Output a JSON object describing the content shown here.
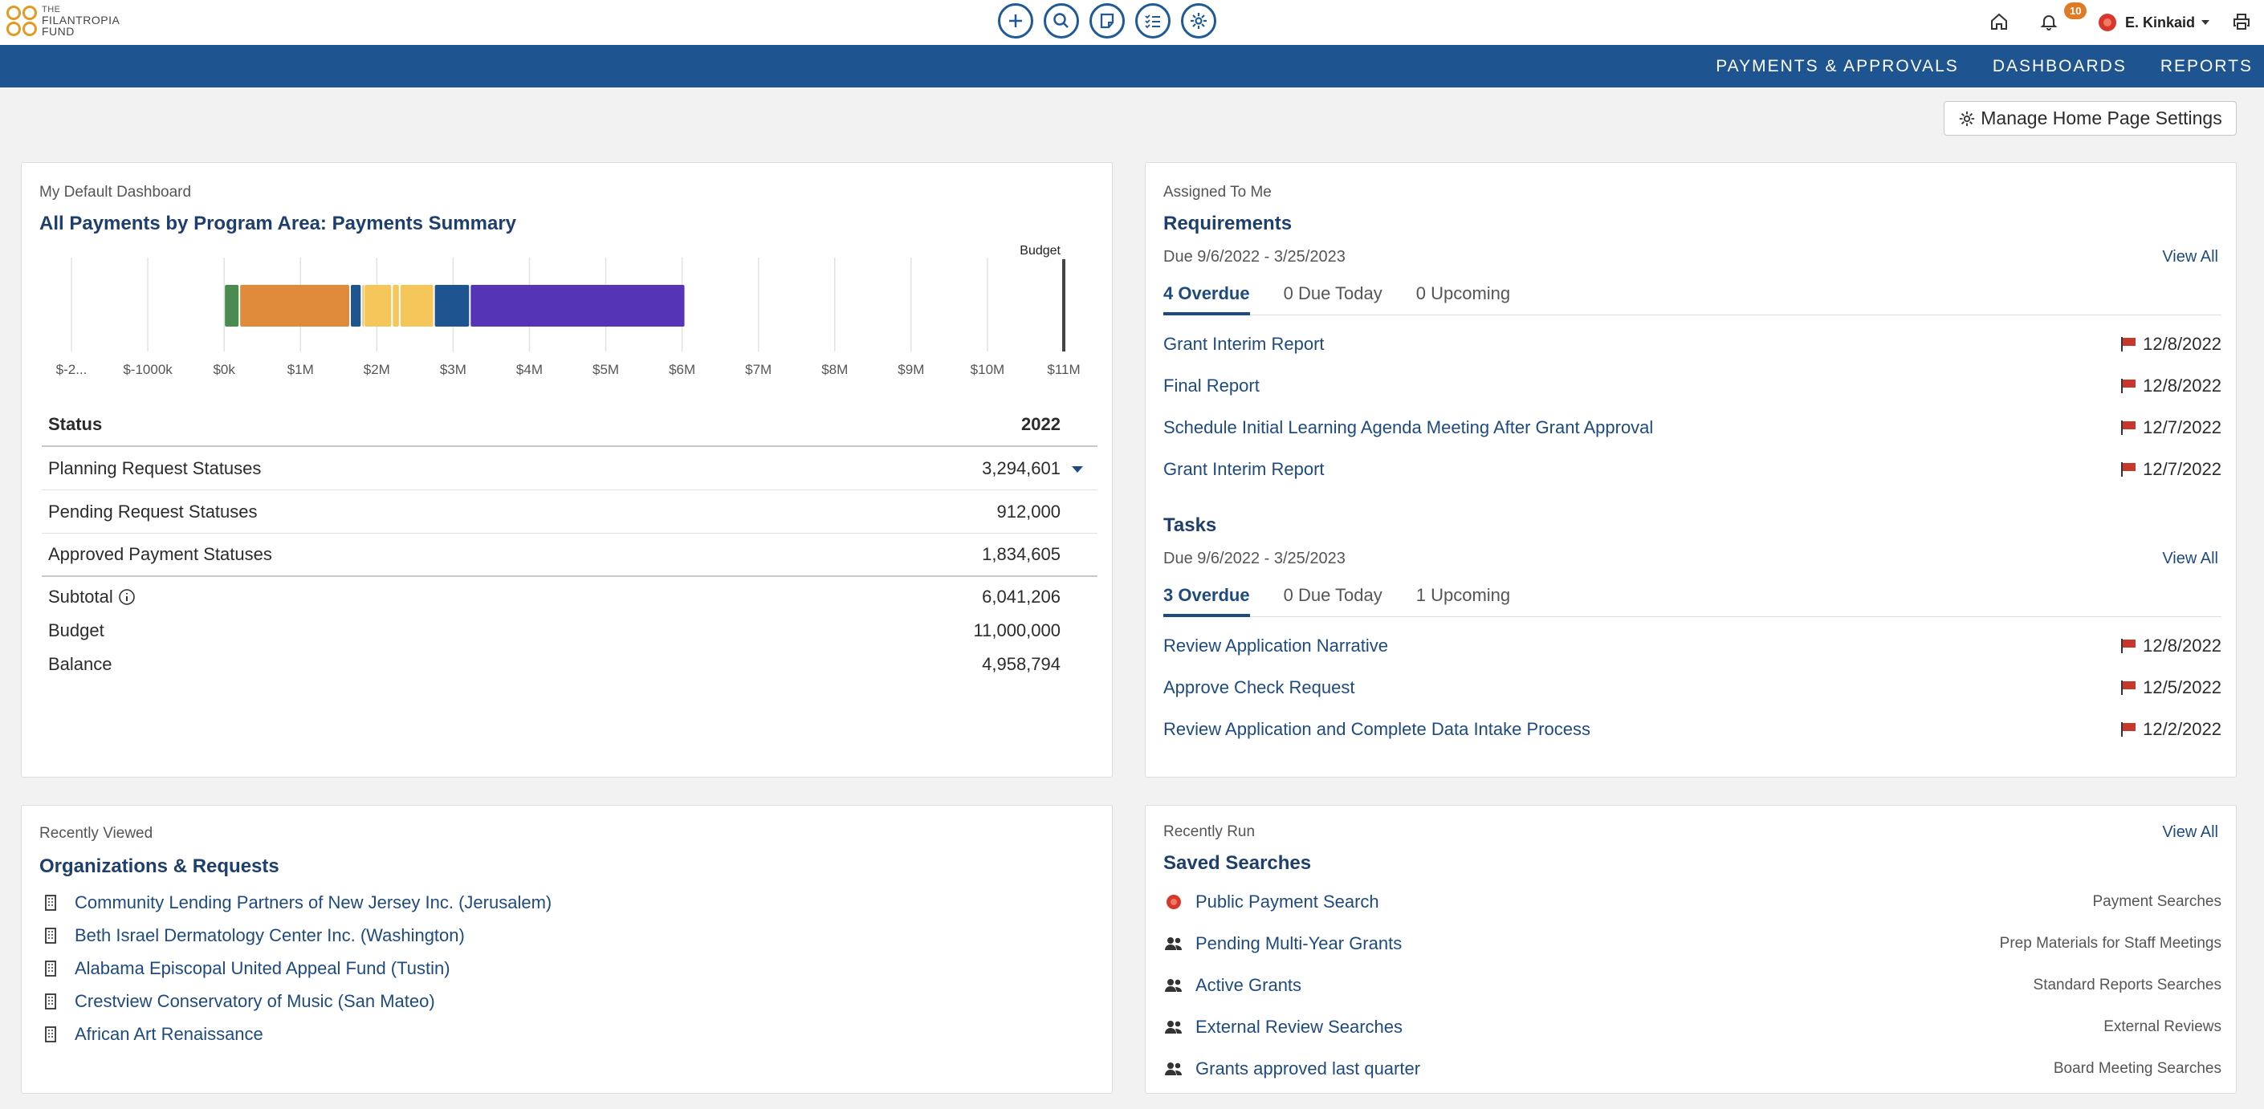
{
  "brand": {
    "line1": "THE",
    "line2": "FILANTROPIA",
    "line3": "FUND"
  },
  "toolbar": {
    "icons": [
      "plus-icon",
      "search-icon",
      "note-icon",
      "checklist-icon",
      "gear-icon"
    ]
  },
  "user": {
    "name": "E. Kinkaid",
    "notifications": "10"
  },
  "nav": {
    "items": [
      "PAYMENTS & APPROVALS",
      "DASHBOARDS",
      "REPORTS"
    ]
  },
  "manage_settings": "Manage Home Page Settings",
  "dashboard": {
    "eyebrow": "My Default Dashboard",
    "title": "All Payments by Program Area: Payments Summary",
    "status_header": "Status",
    "year_header": "2022",
    "rows": [
      {
        "label": "Planning Request Statuses",
        "value": "3,294,601"
      },
      {
        "label": "Pending Request Statuses",
        "value": "912,000"
      },
      {
        "label": "Approved Payment Statuses",
        "value": "1,834,605"
      }
    ],
    "totals": [
      {
        "label": "Subtotal",
        "value": "6,041,206"
      },
      {
        "label": "Budget",
        "value": "11,000,000"
      },
      {
        "label": "Balance",
        "value": "4,958,794"
      }
    ]
  },
  "chart_data": {
    "type": "bar",
    "orientation": "horizontal-stacked",
    "x_ticks": [
      "$-2...",
      "$-1000k",
      "$0k",
      "$1M",
      "$2M",
      "$3M",
      "$4M",
      "$5M",
      "$6M",
      "$7M",
      "$8M",
      "$9M",
      "$10M",
      "$11M"
    ],
    "xlim": [
      -2000000,
      11000000
    ],
    "budget_label": "Budget",
    "budget_value": 11000000,
    "segments": [
      {
        "start": 0,
        "end": 200000,
        "color": "#4a8c50"
      },
      {
        "start": 200000,
        "end": 1650000,
        "color": "#e08a3c"
      },
      {
        "start": 1650000,
        "end": 1800000,
        "color": "#1e5490"
      },
      {
        "start": 1800000,
        "end": 1830000,
        "color": "#f5c65a"
      },
      {
        "start": 1830000,
        "end": 2200000,
        "color": "#f5c65a"
      },
      {
        "start": 2200000,
        "end": 2300000,
        "color": "#f5c65a"
      },
      {
        "start": 2300000,
        "end": 2750000,
        "color": "#f5c65a"
      },
      {
        "start": 2750000,
        "end": 3220000,
        "color": "#1e5490"
      },
      {
        "start": 3220000,
        "end": 6041206,
        "color": "#5535b5"
      }
    ],
    "grid": true
  },
  "requirements": {
    "eyebrow": "Assigned To Me",
    "title": "Requirements",
    "date_range": "Due 9/6/2022 - 3/25/2023",
    "view_all": "View All",
    "tabs": [
      "4 Overdue",
      "0 Due Today",
      "0 Upcoming"
    ],
    "items": [
      {
        "label": "Grant Interim Report",
        "date": "12/8/2022"
      },
      {
        "label": "Final Report",
        "date": "12/8/2022"
      },
      {
        "label": "Schedule Initial Learning Agenda Meeting After Grant Approval",
        "date": "12/7/2022"
      },
      {
        "label": "Grant Interim Report",
        "date": "12/7/2022"
      }
    ]
  },
  "tasks": {
    "title": "Tasks",
    "date_range": "Due 9/6/2022 - 3/25/2023",
    "view_all": "View All",
    "tabs": [
      "3 Overdue",
      "0 Due Today",
      "1 Upcoming"
    ],
    "items": [
      {
        "label": "Review Application Narrative",
        "date": "12/8/2022"
      },
      {
        "label": "Approve Check Request",
        "date": "12/5/2022"
      },
      {
        "label": "Review Application and Complete Data Intake Process",
        "date": "12/2/2022"
      }
    ]
  },
  "recent": {
    "eyebrow": "Recently Viewed",
    "title": "Organizations & Requests",
    "items": [
      "Community Lending Partners of New Jersey Inc. (Jerusalem)",
      "Beth Israel Dermatology Center Inc. (Washington)",
      "Alabama Episcopal United Appeal Fund (Tustin)",
      "Crestview Conservatory of Music (San Mateo)",
      "African Art Renaissance"
    ]
  },
  "saved": {
    "eyebrow": "Recently Run",
    "title": "Saved Searches",
    "view_all": "View All",
    "items": [
      {
        "label": "Public Payment Search",
        "category": "Payment Searches",
        "icon": "red-badge-icon"
      },
      {
        "label": "Pending Multi-Year Grants",
        "category": "Prep Materials for Staff Meetings",
        "icon": "users-icon"
      },
      {
        "label": "Active Grants",
        "category": "Standard Reports Searches",
        "icon": "users-icon"
      },
      {
        "label": "External Review Searches",
        "category": "External Reviews",
        "icon": "users-icon"
      },
      {
        "label": "Grants approved last quarter",
        "category": "Board Meeting Searches",
        "icon": "users-icon"
      }
    ]
  }
}
